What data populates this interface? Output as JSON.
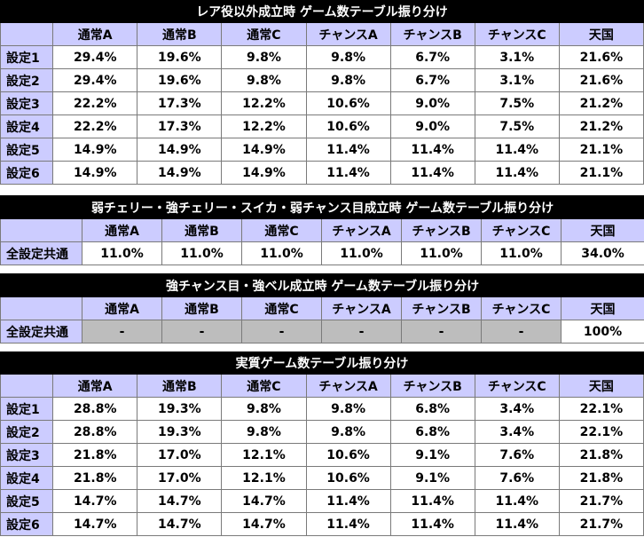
{
  "tables": [
    {
      "title": "レア役以外成立時 ゲーム数テーブル振り分け",
      "headers": [
        "通常A",
        "通常B",
        "通常C",
        "チャンスA",
        "チャンスB",
        "チャンスC",
        "天国"
      ],
      "rows": [
        {
          "label": "設定1",
          "values": [
            "29.4%",
            "19.6%",
            "9.8%",
            "9.8%",
            "6.7%",
            "3.1%",
            "21.6%"
          ]
        },
        {
          "label": "設定2",
          "values": [
            "29.4%",
            "19.6%",
            "9.8%",
            "9.8%",
            "6.7%",
            "3.1%",
            "21.6%"
          ]
        },
        {
          "label": "設定3",
          "values": [
            "22.2%",
            "17.3%",
            "12.2%",
            "10.6%",
            "9.0%",
            "7.5%",
            "21.2%"
          ]
        },
        {
          "label": "設定4",
          "values": [
            "22.2%",
            "17.3%",
            "12.2%",
            "10.6%",
            "9.0%",
            "7.5%",
            "21.2%"
          ]
        },
        {
          "label": "設定5",
          "values": [
            "14.9%",
            "14.9%",
            "14.9%",
            "11.4%",
            "11.4%",
            "11.4%",
            "21.1%"
          ]
        },
        {
          "label": "設定6",
          "values": [
            "14.9%",
            "14.9%",
            "14.9%",
            "11.4%",
            "11.4%",
            "11.4%",
            "21.1%"
          ]
        }
      ]
    },
    {
      "title": "弱チェリー・強チェリー・スイカ・弱チャンス目成立時 ゲーム数テーブル振り分け",
      "headers": [
        "通常A",
        "通常B",
        "通常C",
        "チャンスA",
        "チャンスB",
        "チャンスC",
        "天国"
      ],
      "rows": [
        {
          "label": "全設定共通",
          "values": [
            "11.0%",
            "11.0%",
            "11.0%",
            "11.0%",
            "11.0%",
            "11.0%",
            "34.0%"
          ]
        }
      ]
    },
    {
      "title": "強チャンス目・強ベル成立時 ゲーム数テーブル振り分け",
      "headers": [
        "通常A",
        "通常B",
        "通常C",
        "チャンスA",
        "チャンスB",
        "チャンスC",
        "天国"
      ],
      "rows": [
        {
          "label": "全設定共通",
          "values": [
            "-",
            "-",
            "-",
            "-",
            "-",
            "-",
            "100%"
          ]
        }
      ]
    },
    {
      "title": "実質ゲーム数テーブル振り分け",
      "headers": [
        "通常A",
        "通常B",
        "通常C",
        "チャンスA",
        "チャンスB",
        "チャンスC",
        "天国"
      ],
      "rows": [
        {
          "label": "設定1",
          "values": [
            "28.8%",
            "19.3%",
            "9.8%",
            "9.8%",
            "6.8%",
            "3.4%",
            "22.1%"
          ]
        },
        {
          "label": "設定2",
          "values": [
            "28.8%",
            "19.3%",
            "9.8%",
            "9.8%",
            "6.8%",
            "3.4%",
            "22.1%"
          ]
        },
        {
          "label": "設定3",
          "values": [
            "21.8%",
            "17.0%",
            "12.1%",
            "10.6%",
            "9.1%",
            "7.6%",
            "21.8%"
          ]
        },
        {
          "label": "設定4",
          "values": [
            "21.8%",
            "17.0%",
            "12.1%",
            "10.6%",
            "9.1%",
            "7.6%",
            "21.8%"
          ]
        },
        {
          "label": "設定5",
          "values": [
            "14.7%",
            "14.7%",
            "14.7%",
            "11.4%",
            "11.4%",
            "11.4%",
            "21.7%"
          ]
        },
        {
          "label": "設定6",
          "values": [
            "14.7%",
            "14.7%",
            "14.7%",
            "11.4%",
            "11.4%",
            "11.4%",
            "21.7%"
          ]
        }
      ]
    }
  ]
}
